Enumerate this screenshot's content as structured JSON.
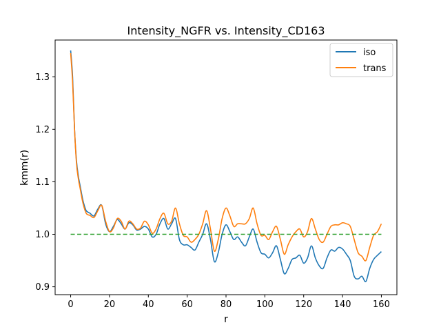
{
  "chart_data": {
    "type": "line",
    "title": "Intensity_NGFR vs. Intensity_CD163",
    "xlabel": "r",
    "ylabel": "kmm(r)",
    "xlim": [
      -8,
      168
    ],
    "ylim": [
      0.885,
      1.37
    ],
    "xticks": [
      0,
      20,
      40,
      60,
      80,
      100,
      120,
      140,
      160
    ],
    "yticks": [
      0.9,
      1.0,
      1.1,
      1.2,
      1.3
    ],
    "ytick_labels": [
      "0.9",
      "1.0",
      "1.1",
      "1.2",
      "1.3"
    ],
    "grid": false,
    "legend_position": "top-right",
    "series": [
      {
        "name": "iso",
        "color": "#1f77b4",
        "x": [
          0,
          1,
          2,
          3,
          4,
          5,
          6,
          7,
          8,
          9,
          10,
          12,
          14,
          16,
          18,
          20,
          22,
          24,
          26,
          28,
          30,
          32,
          34,
          36,
          38,
          40,
          42,
          44,
          46,
          48,
          50,
          52,
          54,
          56,
          58,
          60,
          62,
          64,
          66,
          68,
          70,
          72,
          74,
          76,
          78,
          80,
          82,
          84,
          86,
          88,
          90,
          92,
          94,
          96,
          98,
          100,
          102,
          104,
          106,
          108,
          110,
          112,
          114,
          116,
          118,
          120,
          122,
          124,
          126,
          128,
          130,
          132,
          134,
          136,
          138,
          140,
          142,
          144,
          146,
          148,
          150,
          152,
          154,
          156,
          158,
          160
        ],
        "y": [
          1.35,
          1.3,
          1.2,
          1.14,
          1.11,
          1.09,
          1.07,
          1.055,
          1.045,
          1.042,
          1.04,
          1.035,
          1.048,
          1.055,
          1.02,
          1.005,
          1.015,
          1.028,
          1.02,
          1.01,
          1.022,
          1.018,
          1.008,
          1.01,
          1.015,
          1.01,
          0.995,
          1.0,
          1.02,
          1.03,
          1.01,
          1.02,
          1.03,
          0.99,
          0.98,
          0.98,
          0.975,
          0.97,
          0.985,
          1.0,
          1.02,
          0.99,
          0.948,
          0.965,
          1.0,
          1.018,
          1.005,
          0.99,
          0.995,
          0.985,
          0.978,
          0.995,
          1.01,
          0.985,
          0.965,
          0.962,
          0.955,
          0.965,
          0.978,
          0.952,
          0.925,
          0.935,
          0.952,
          0.955,
          0.96,
          0.945,
          0.955,
          0.978,
          0.955,
          0.94,
          0.935,
          0.955,
          0.97,
          0.968,
          0.975,
          0.972,
          0.962,
          0.95,
          0.92,
          0.915,
          0.92,
          0.91,
          0.935,
          0.952,
          0.96,
          0.967
        ]
      },
      {
        "name": "trans",
        "color": "#ff7f0e",
        "x": [
          0,
          1,
          2,
          3,
          4,
          5,
          6,
          7,
          8,
          9,
          10,
          12,
          14,
          16,
          18,
          20,
          22,
          24,
          26,
          28,
          30,
          32,
          34,
          36,
          38,
          40,
          42,
          44,
          46,
          48,
          50,
          52,
          54,
          56,
          58,
          60,
          62,
          64,
          66,
          68,
          70,
          72,
          74,
          76,
          78,
          80,
          82,
          84,
          86,
          88,
          90,
          92,
          94,
          96,
          98,
          100,
          102,
          104,
          106,
          108,
          110,
          112,
          114,
          116,
          118,
          120,
          122,
          124,
          126,
          128,
          130,
          132,
          134,
          136,
          138,
          140,
          142,
          144,
          146,
          148,
          150,
          152,
          154,
          156,
          158,
          160
        ],
        "y": [
          1.345,
          1.29,
          1.2,
          1.135,
          1.105,
          1.085,
          1.065,
          1.05,
          1.04,
          1.037,
          1.036,
          1.032,
          1.045,
          1.055,
          1.025,
          1.005,
          1.012,
          1.03,
          1.025,
          1.01,
          1.025,
          1.02,
          1.01,
          1.012,
          1.025,
          1.018,
          1.002,
          1.01,
          1.03,
          1.04,
          1.02,
          1.025,
          1.05,
          1.02,
          0.998,
          0.995,
          0.985,
          0.99,
          1.0,
          1.02,
          1.045,
          1.01,
          0.968,
          0.99,
          1.03,
          1.05,
          1.035,
          1.015,
          1.02,
          1.02,
          1.02,
          1.03,
          1.05,
          1.02,
          0.998,
          0.998,
          0.99,
          1.005,
          1.015,
          0.99,
          0.962,
          0.98,
          0.995,
          1.005,
          1.01,
          0.995,
          1.005,
          1.03,
          1.01,
          0.99,
          0.985,
          1.0,
          1.015,
          1.018,
          1.018,
          1.022,
          1.02,
          1.015,
          0.99,
          0.965,
          0.958,
          0.95,
          0.975,
          0.998,
          1.005,
          1.02
        ]
      },
      {
        "color": "#2ca02c",
        "dashed": true,
        "x": [
          0,
          160
        ],
        "y": [
          1.0,
          1.0
        ]
      }
    ]
  }
}
